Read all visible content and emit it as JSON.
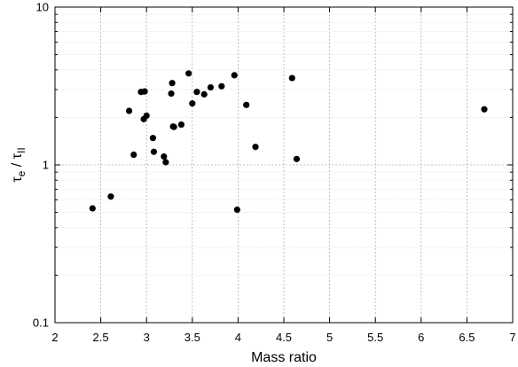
{
  "chart_data": {
    "type": "scatter",
    "title": "",
    "xlabel": "Mass ratio",
    "ylabel_symbol": "τ",
    "ylabel_sub_num": "e",
    "ylabel_slash": " / ",
    "ylabel_sub_den": "II",
    "xlim": [
      2,
      7
    ],
    "ylim": [
      0.1,
      10
    ],
    "yscale": "log",
    "grid": true,
    "xticks": [
      "2",
      "2.5",
      "3",
      "3.5",
      "4",
      "4.5",
      "5",
      "5.5",
      "6",
      "6.5",
      "7"
    ],
    "yticks": [
      "0.1",
      "1",
      "10"
    ],
    "marker_color": "#000000",
    "series": [
      {
        "x": [
          2.41,
          2.61,
          2.81,
          2.86,
          2.94,
          2.98,
          2.97,
          3.0,
          3.07,
          3.08,
          3.19,
          3.21,
          3.27,
          3.28,
          3.3,
          3.29,
          3.38,
          3.46,
          3.5,
          3.55,
          3.63,
          3.7,
          3.82,
          3.96,
          3.99,
          4.09,
          4.19,
          4.59,
          4.64,
          6.69
        ],
        "y": [
          0.53,
          0.63,
          2.2,
          1.16,
          2.9,
          2.92,
          1.95,
          2.05,
          1.48,
          1.21,
          1.13,
          1.04,
          2.83,
          3.3,
          1.74,
          1.75,
          1.8,
          3.8,
          2.45,
          2.9,
          2.8,
          3.1,
          3.15,
          3.7,
          0.52,
          2.4,
          1.3,
          3.55,
          1.09,
          2.25
        ]
      }
    ]
  }
}
